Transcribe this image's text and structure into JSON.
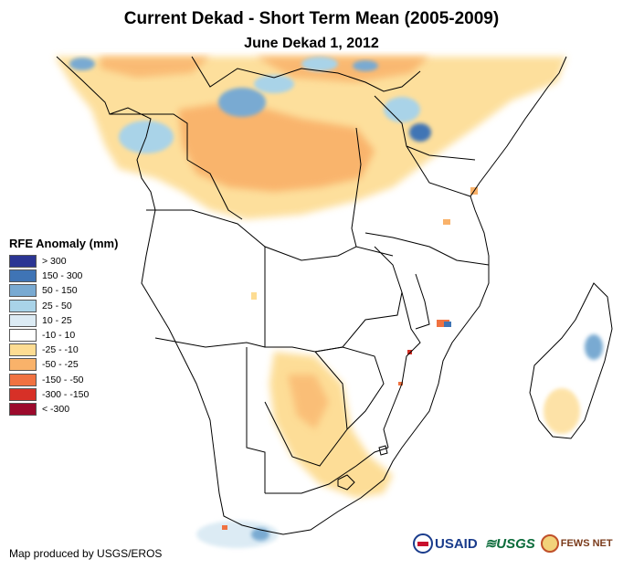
{
  "header": {
    "title": "Current Dekad - Short Term Mean (2005-2009)",
    "subtitle": "June Dekad 1, 2012"
  },
  "legend": {
    "title": "RFE Anomaly (mm)",
    "items": [
      {
        "label": "> 300",
        "color": "#2b3593"
      },
      {
        "label": "150 - 300",
        "color": "#3f74b5"
      },
      {
        "label": "50 - 150",
        "color": "#79aad2"
      },
      {
        "label": "25 - 50",
        "color": "#a9d3e8"
      },
      {
        "label": "10 - 25",
        "color": "#dcebf4"
      },
      {
        "label": "-10 - 10",
        "color": "#ffffff"
      },
      {
        "label": "-25 - -10",
        "color": "#fddc92"
      },
      {
        "label": "-50 - -25",
        "color": "#f9b26a"
      },
      {
        "label": "-150 - -50",
        "color": "#f07241"
      },
      {
        "label": "-300 - -150",
        "color": "#d73027"
      },
      {
        "label": "< -300",
        "color": "#9c0a2c"
      }
    ]
  },
  "footer": {
    "credit": "Map produced by USGS/EROS",
    "logos": [
      {
        "name": "USAID",
        "text": "USAID"
      },
      {
        "name": "USGS",
        "text": "≋USGS"
      },
      {
        "name": "FEWS NET",
        "text": "FEWS NET"
      }
    ]
  }
}
